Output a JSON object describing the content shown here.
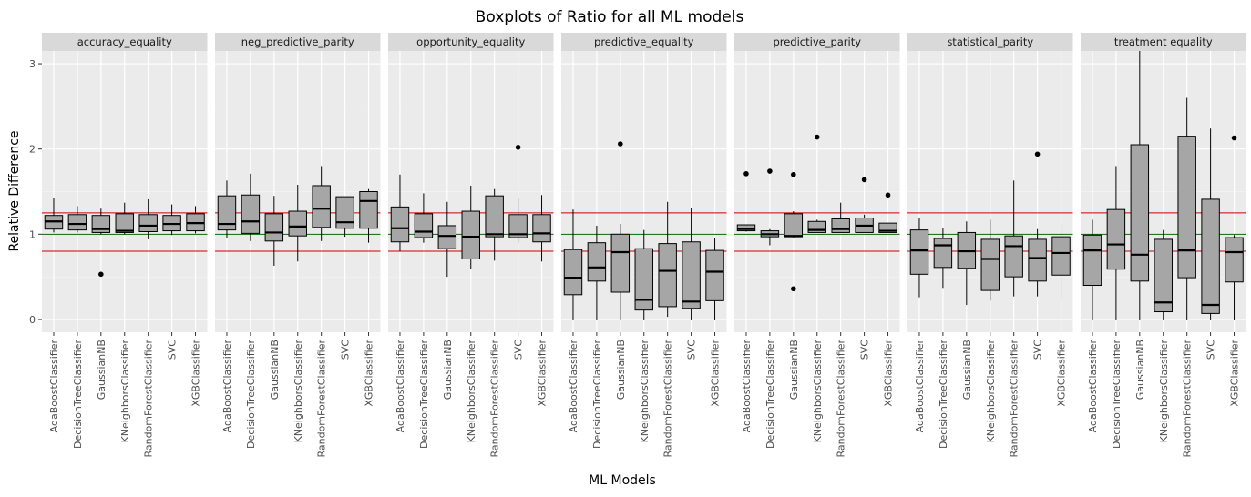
{
  "chart_data": {
    "type": "boxplot",
    "title": "Boxplots of Ratio for all ML models",
    "xlabel": "ML Models",
    "ylabel": "Relative Difference",
    "ylim": [
      -0.15,
      3.15
    ],
    "yticks": [
      0,
      1,
      2,
      3
    ],
    "reference_lines": [
      {
        "y": 1.25,
        "color": "#cc0000"
      },
      {
        "y": 1.0,
        "color": "#006600"
      },
      {
        "y": 0.8,
        "color": "#cc0000"
      }
    ],
    "categories": [
      "AdaBoostClassifier",
      "DecisionTreeClassifier",
      "GaussianNB",
      "KNeighborsClassifier",
      "RandomForestClassifier",
      "SVC",
      "XGBClassifier"
    ],
    "colors": {
      "box_fill": "#a6a6a6",
      "panel_bg": "#ebebeb",
      "strip_bg": "#d9d9d9",
      "grid": "#ffffff"
    },
    "facets": [
      {
        "name": "accuracy_equality",
        "boxes": [
          {
            "whislo": 1.02,
            "q1": 1.06,
            "med": 1.15,
            "q3": 1.22,
            "whishi": 1.43,
            "fliers": []
          },
          {
            "whislo": 1.02,
            "q1": 1.05,
            "med": 1.12,
            "q3": 1.23,
            "whishi": 1.33,
            "fliers": []
          },
          {
            "whislo": 1.0,
            "q1": 1.02,
            "med": 1.06,
            "q3": 1.22,
            "whishi": 1.3,
            "fliers": [
              0.53
            ]
          },
          {
            "whislo": 1.0,
            "q1": 1.02,
            "med": 1.04,
            "q3": 1.24,
            "whishi": 1.37,
            "fliers": []
          },
          {
            "whislo": 0.94,
            "q1": 1.03,
            "med": 1.1,
            "q3": 1.23,
            "whishi": 1.41,
            "fliers": []
          },
          {
            "whislo": 0.99,
            "q1": 1.04,
            "med": 1.12,
            "q3": 1.22,
            "whishi": 1.35,
            "fliers": []
          },
          {
            "whislo": 1.01,
            "q1": 1.04,
            "med": 1.13,
            "q3": 1.24,
            "whishi": 1.33,
            "fliers": []
          }
        ]
      },
      {
        "name": "neg_predictive_parity",
        "boxes": [
          {
            "whislo": 0.95,
            "q1": 1.05,
            "med": 1.12,
            "q3": 1.45,
            "whishi": 1.63,
            "fliers": []
          },
          {
            "whislo": 0.92,
            "q1": 1.01,
            "med": 1.15,
            "q3": 1.46,
            "whishi": 1.71,
            "fliers": []
          },
          {
            "whislo": 0.63,
            "q1": 0.92,
            "med": 1.02,
            "q3": 1.24,
            "whishi": 1.45,
            "fliers": []
          },
          {
            "whislo": 0.68,
            "q1": 0.98,
            "med": 1.09,
            "q3": 1.27,
            "whishi": 1.58,
            "fliers": []
          },
          {
            "whislo": 0.92,
            "q1": 1.08,
            "med": 1.3,
            "q3": 1.57,
            "whishi": 1.8,
            "fliers": []
          },
          {
            "whislo": 0.97,
            "q1": 1.07,
            "med": 1.14,
            "q3": 1.44,
            "whishi": 1.44,
            "fliers": []
          },
          {
            "whislo": 0.9,
            "q1": 1.07,
            "med": 1.39,
            "q3": 1.5,
            "whishi": 1.53,
            "fliers": []
          }
        ]
      },
      {
        "name": "opportunity_equality",
        "boxes": [
          {
            "whislo": 0.8,
            "q1": 0.91,
            "med": 1.07,
            "q3": 1.32,
            "whishi": 1.7,
            "fliers": []
          },
          {
            "whislo": 0.9,
            "q1": 0.96,
            "med": 1.03,
            "q3": 1.24,
            "whishi": 1.48,
            "fliers": []
          },
          {
            "whislo": 0.5,
            "q1": 0.83,
            "med": 0.98,
            "q3": 1.1,
            "whishi": 1.38,
            "fliers": []
          },
          {
            "whislo": 0.59,
            "q1": 0.71,
            "med": 0.97,
            "q3": 1.27,
            "whishi": 1.57,
            "fliers": []
          },
          {
            "whislo": 0.69,
            "q1": 0.97,
            "med": 1.0,
            "q3": 1.45,
            "whishi": 1.53,
            "fliers": []
          },
          {
            "whislo": 0.9,
            "q1": 0.96,
            "med": 1.0,
            "q3": 1.23,
            "whishi": 1.42,
            "fliers": [
              2.02
            ]
          },
          {
            "whislo": 0.68,
            "q1": 0.91,
            "med": 1.01,
            "q3": 1.23,
            "whishi": 1.46,
            "fliers": []
          }
        ]
      },
      {
        "name": "predictive_equality",
        "boxes": [
          {
            "whislo": 0.0,
            "q1": 0.29,
            "med": 0.49,
            "q3": 0.82,
            "whishi": 1.29,
            "fliers": []
          },
          {
            "whislo": 0.0,
            "q1": 0.45,
            "med": 0.61,
            "q3": 0.9,
            "whishi": 1.1,
            "fliers": []
          },
          {
            "whislo": 0.0,
            "q1": 0.32,
            "med": 0.79,
            "q3": 1.0,
            "whishi": 1.12,
            "fliers": [
              2.06
            ]
          },
          {
            "whislo": 0.0,
            "q1": 0.11,
            "med": 0.23,
            "q3": 0.83,
            "whishi": 1.05,
            "fliers": []
          },
          {
            "whislo": 0.03,
            "q1": 0.15,
            "med": 0.57,
            "q3": 0.89,
            "whishi": 1.38,
            "fliers": []
          },
          {
            "whislo": 0.0,
            "q1": 0.13,
            "med": 0.21,
            "q3": 0.91,
            "whishi": 1.31,
            "fliers": []
          },
          {
            "whislo": 0.0,
            "q1": 0.22,
            "med": 0.56,
            "q3": 0.81,
            "whishi": 0.96,
            "fliers": []
          }
        ]
      },
      {
        "name": "predictive_parity",
        "boxes": [
          {
            "whislo": 1.03,
            "q1": 1.04,
            "med": 1.06,
            "q3": 1.11,
            "whishi": 1.11,
            "fliers": [
              1.71
            ]
          },
          {
            "whislo": 0.87,
            "q1": 0.97,
            "med": 1.0,
            "q3": 1.04,
            "whishi": 1.06,
            "fliers": [
              1.74
            ]
          },
          {
            "whislo": 0.95,
            "q1": 0.97,
            "med": 0.98,
            "q3": 1.24,
            "whishi": 1.27,
            "fliers": [
              1.7,
              0.36
            ]
          },
          {
            "whislo": 1.02,
            "q1": 1.02,
            "med": 1.05,
            "q3": 1.15,
            "whishi": 1.17,
            "fliers": [
              2.14
            ]
          },
          {
            "whislo": 1.02,
            "q1": 1.02,
            "med": 1.06,
            "q3": 1.18,
            "whishi": 1.37,
            "fliers": []
          },
          {
            "whislo": 1.02,
            "q1": 1.02,
            "med": 1.1,
            "q3": 1.19,
            "whishi": 1.23,
            "fliers": [
              1.64
            ]
          },
          {
            "whislo": 1.02,
            "q1": 1.02,
            "med": 1.04,
            "q3": 1.13,
            "whishi": 1.13,
            "fliers": [
              1.46
            ]
          }
        ]
      },
      {
        "name": "statistical_parity",
        "boxes": [
          {
            "whislo": 0.26,
            "q1": 0.53,
            "med": 0.81,
            "q3": 1.05,
            "whishi": 1.19,
            "fliers": []
          },
          {
            "whislo": 0.37,
            "q1": 0.61,
            "med": 0.87,
            "q3": 0.95,
            "whishi": 1.07,
            "fliers": []
          },
          {
            "whislo": 0.17,
            "q1": 0.6,
            "med": 0.8,
            "q3": 1.02,
            "whishi": 1.15,
            "fliers": []
          },
          {
            "whislo": 0.22,
            "q1": 0.34,
            "med": 0.71,
            "q3": 0.94,
            "whishi": 1.17,
            "fliers": []
          },
          {
            "whislo": 0.27,
            "q1": 0.5,
            "med": 0.86,
            "q3": 0.98,
            "whishi": 1.63,
            "fliers": []
          },
          {
            "whislo": 0.27,
            "q1": 0.45,
            "med": 0.72,
            "q3": 0.94,
            "whishi": 1.06,
            "fliers": [
              1.94
            ]
          },
          {
            "whislo": 0.25,
            "q1": 0.52,
            "med": 0.78,
            "q3": 0.97,
            "whishi": 1.11,
            "fliers": []
          }
        ]
      },
      {
        "name": "treatment equality",
        "boxes": [
          {
            "whislo": 0.0,
            "q1": 0.4,
            "med": 0.81,
            "q3": 0.99,
            "whishi": 1.17,
            "fliers": []
          },
          {
            "whislo": 0.0,
            "q1": 0.59,
            "med": 0.88,
            "q3": 1.29,
            "whishi": 1.8,
            "fliers": []
          },
          {
            "whislo": 0.0,
            "q1": 0.45,
            "med": 0.76,
            "q3": 2.05,
            "whishi": 3.15,
            "fliers": []
          },
          {
            "whislo": 0.0,
            "q1": 0.09,
            "med": 0.2,
            "q3": 0.94,
            "whishi": 1.05,
            "fliers": []
          },
          {
            "whislo": 0.0,
            "q1": 0.49,
            "med": 0.81,
            "q3": 2.15,
            "whishi": 2.6,
            "fliers": []
          },
          {
            "whislo": 0.0,
            "q1": 0.07,
            "med": 0.17,
            "q3": 1.41,
            "whishi": 2.24,
            "fliers": []
          },
          {
            "whislo": 0.0,
            "q1": 0.44,
            "med": 0.79,
            "q3": 0.96,
            "whishi": 0.99,
            "fliers": [
              2.13
            ]
          }
        ]
      }
    ]
  }
}
